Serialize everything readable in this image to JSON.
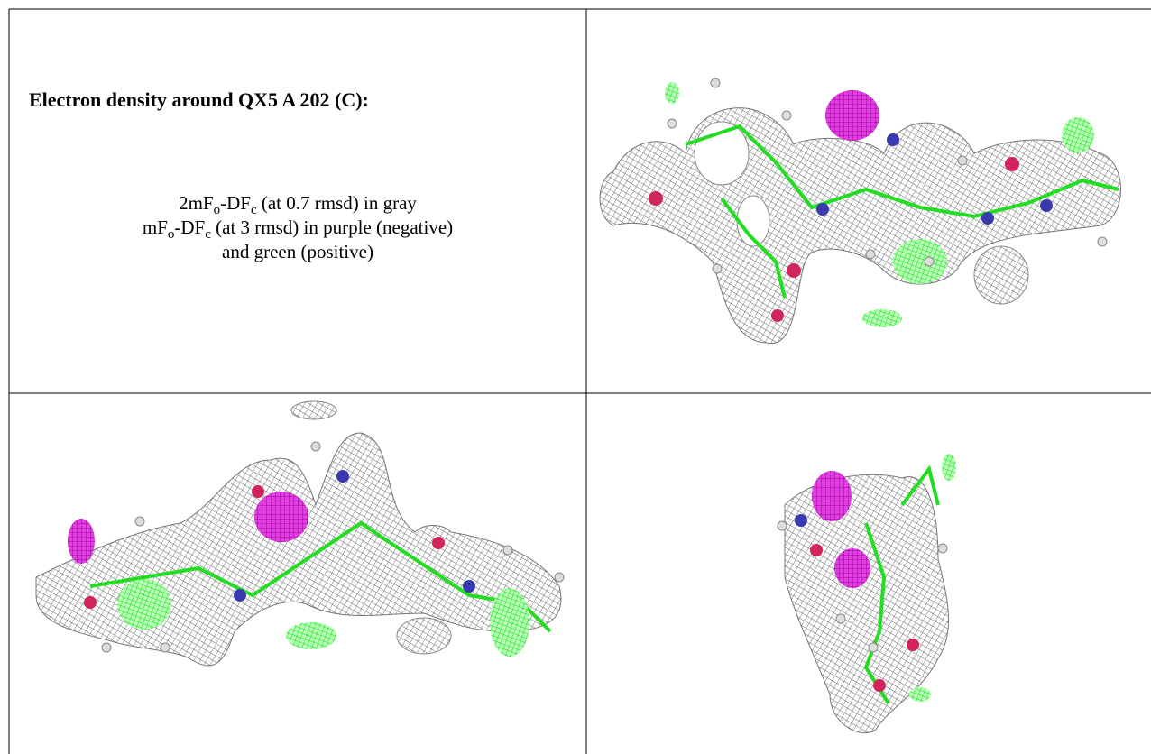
{
  "panel": {
    "title": "Electron density around QX5 A 202 (C):",
    "lines": [
      [
        "2mF",
        "o",
        "-DF",
        "c",
        " (at 0.7 rmsd) in gray"
      ],
      [
        "mF",
        "o",
        "-DF",
        "c",
        " (at 3 rmsd) in purple (negative)"
      ],
      [
        "and green (positive)"
      ]
    ]
  }
}
